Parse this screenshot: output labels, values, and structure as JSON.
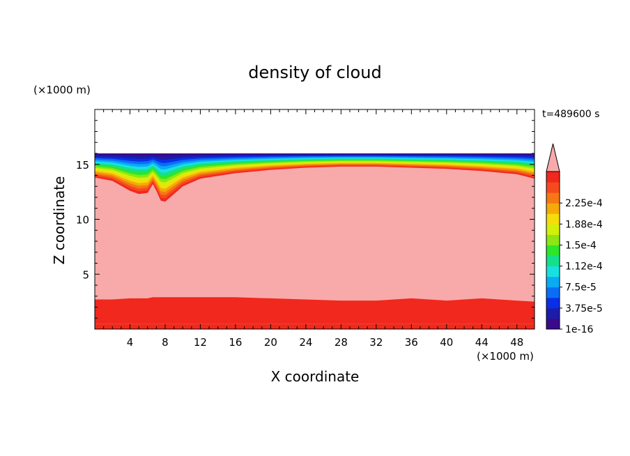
{
  "chart_data": {
    "type": "heatmap",
    "title": "density of cloud",
    "xlabel": "X coordinate",
    "ylabel": "Z coordinate",
    "x_unit": "(×1000 m)",
    "y_unit": "(×1000 m)",
    "time_label": "t=489600 s",
    "xlim": [
      0,
      50
    ],
    "ylim": [
      0,
      20
    ],
    "x_ticks": [
      4,
      8,
      12,
      16,
      20,
      24,
      28,
      32,
      36,
      40,
      44,
      48
    ],
    "y_ticks": [
      5,
      10,
      15
    ],
    "colorbar": {
      "extend": "max",
      "labels": [
        "1e-16",
        "3.75e-5",
        "7.5e-5",
        "1.12e-4",
        "1.5e-4",
        "1.88e-4",
        "2.25e-4"
      ],
      "colors": [
        "#3a0a8c",
        "#1c1ca8",
        "#0a2ee6",
        "#0a6ef5",
        "#0aaaf5",
        "#19e0e0",
        "#14e08c",
        "#2ce62c",
        "#8ce614",
        "#d2f00a",
        "#f5dc0a",
        "#f5aa0a",
        "#f57814",
        "#f54a1e",
        "#f0281e"
      ],
      "over_color": "#f8aaaa"
    },
    "cloud_region": {
      "x": [
        0,
        2,
        4,
        5,
        6,
        6.6,
        7,
        7.5,
        8,
        9,
        10,
        12,
        16,
        20,
        24,
        28,
        32,
        36,
        40,
        44,
        48,
        50
      ],
      "top": [
        13.8,
        13.5,
        12.6,
        12.3,
        12.4,
        13.2,
        12.6,
        11.7,
        11.6,
        12.3,
        13.0,
        13.7,
        14.2,
        14.5,
        14.7,
        14.8,
        14.8,
        14.7,
        14.6,
        14.4,
        14.1,
        13.7
      ],
      "bottom": [
        2.7,
        2.7,
        2.8,
        2.8,
        2.8,
        2.9,
        2.9,
        2.9,
        2.9,
        2.9,
        2.9,
        2.9,
        2.9,
        2.8,
        2.7,
        2.6,
        2.6,
        2.8,
        2.6,
        2.8,
        2.6,
        2.5
      ]
    },
    "top_boundary": 16.0,
    "bottom_boundary": 0.5
  }
}
